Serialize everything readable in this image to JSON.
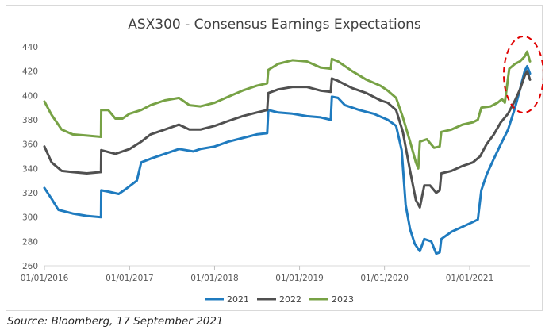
{
  "source_note": "Source: Bloomberg, 17 September 2021",
  "chart_data": {
    "type": "line",
    "title": "ASX300 - Consensus Earnings Expectations",
    "xlabel": "",
    "ylabel": "",
    "ylim": [
      260,
      440
    ],
    "yticks": [
      260,
      280,
      300,
      320,
      340,
      360,
      380,
      400,
      420,
      440
    ],
    "xlim": [
      "2016-01-01",
      "2021-09-17"
    ],
    "xticks": [
      "01/01/2016",
      "01/01/2017",
      "01/01/2018",
      "01/01/2019",
      "01/01/2020",
      "01/01/2021"
    ],
    "grid": false,
    "legend": "bottom",
    "series": [
      {
        "name": "2021",
        "color": "#1f7bbf",
        "points": [
          [
            "2016-01-01",
            324
          ],
          [
            "2016-02-01",
            315
          ],
          [
            "2016-03-01",
            306
          ],
          [
            "2016-05-01",
            303
          ],
          [
            "2016-07-01",
            301
          ],
          [
            "2016-08-31",
            300
          ],
          [
            "2016-09-01",
            322
          ],
          [
            "2016-10-01",
            321
          ],
          [
            "2016-11-15",
            319
          ],
          [
            "2016-12-15",
            323
          ],
          [
            "2017-02-01",
            330
          ],
          [
            "2017-02-20",
            345
          ],
          [
            "2017-04-01",
            348
          ],
          [
            "2017-06-01",
            352
          ],
          [
            "2017-08-01",
            356
          ],
          [
            "2017-09-01",
            355
          ],
          [
            "2017-10-01",
            354
          ],
          [
            "2017-11-01",
            356
          ],
          [
            "2018-01-01",
            358
          ],
          [
            "2018-03-01",
            362
          ],
          [
            "2018-05-01",
            365
          ],
          [
            "2018-07-01",
            368
          ],
          [
            "2018-08-15",
            369
          ],
          [
            "2018-08-20",
            388
          ],
          [
            "2018-10-01",
            386
          ],
          [
            "2018-12-01",
            385
          ],
          [
            "2019-02-01",
            383
          ],
          [
            "2019-04-01",
            382
          ],
          [
            "2019-05-15",
            380
          ],
          [
            "2019-05-20",
            399
          ],
          [
            "2019-06-15",
            398
          ],
          [
            "2019-07-15",
            392
          ],
          [
            "2019-09-15",
            388
          ],
          [
            "2019-11-15",
            385
          ],
          [
            "2020-01-15",
            380
          ],
          [
            "2020-02-20",
            375
          ],
          [
            "2020-03-15",
            355
          ],
          [
            "2020-04-01",
            310
          ],
          [
            "2020-04-20",
            290
          ],
          [
            "2020-05-10",
            278
          ],
          [
            "2020-06-01",
            272
          ],
          [
            "2020-06-20",
            282
          ],
          [
            "2020-07-20",
            280
          ],
          [
            "2020-08-10",
            270
          ],
          [
            "2020-08-25",
            271
          ],
          [
            "2020-09-01",
            282
          ],
          [
            "2020-10-15",
            288
          ],
          [
            "2020-12-01",
            292
          ],
          [
            "2021-01-15",
            296
          ],
          [
            "2021-02-05",
            298
          ],
          [
            "2021-02-20",
            322
          ],
          [
            "2021-03-15",
            335
          ],
          [
            "2021-04-15",
            348
          ],
          [
            "2021-05-15",
            360
          ],
          [
            "2021-06-15",
            372
          ],
          [
            "2021-07-15",
            390
          ],
          [
            "2021-08-05",
            405
          ],
          [
            "2021-08-25",
            420
          ],
          [
            "2021-09-05",
            424
          ],
          [
            "2021-09-17",
            418
          ]
        ]
      },
      {
        "name": "2022",
        "color": "#505050",
        "points": [
          [
            "2016-01-01",
            358
          ],
          [
            "2016-02-01",
            345
          ],
          [
            "2016-03-15",
            338
          ],
          [
            "2016-05-01",
            337
          ],
          [
            "2016-07-01",
            336
          ],
          [
            "2016-08-31",
            337
          ],
          [
            "2016-09-01",
            355
          ],
          [
            "2016-11-01",
            352
          ],
          [
            "2017-01-01",
            356
          ],
          [
            "2017-02-20",
            362
          ],
          [
            "2017-04-01",
            368
          ],
          [
            "2017-06-01",
            372
          ],
          [
            "2017-08-01",
            376
          ],
          [
            "2017-09-15",
            372
          ],
          [
            "2017-11-01",
            372
          ],
          [
            "2018-01-01",
            375
          ],
          [
            "2018-03-01",
            379
          ],
          [
            "2018-05-01",
            383
          ],
          [
            "2018-07-01",
            386
          ],
          [
            "2018-08-15",
            388
          ],
          [
            "2018-08-20",
            402
          ],
          [
            "2018-10-01",
            405
          ],
          [
            "2018-12-01",
            407
          ],
          [
            "2019-02-01",
            407
          ],
          [
            "2019-04-01",
            404
          ],
          [
            "2019-05-15",
            403
          ],
          [
            "2019-05-20",
            414
          ],
          [
            "2019-06-15",
            412
          ],
          [
            "2019-08-15",
            406
          ],
          [
            "2019-10-15",
            402
          ],
          [
            "2019-12-15",
            396
          ],
          [
            "2020-01-15",
            394
          ],
          [
            "2020-02-20",
            388
          ],
          [
            "2020-03-20",
            370
          ],
          [
            "2020-04-20",
            338
          ],
          [
            "2020-05-15",
            314
          ],
          [
            "2020-06-01",
            308
          ],
          [
            "2020-06-20",
            326
          ],
          [
            "2020-07-15",
            326
          ],
          [
            "2020-08-10",
            320
          ],
          [
            "2020-08-25",
            322
          ],
          [
            "2020-09-01",
            336
          ],
          [
            "2020-10-15",
            338
          ],
          [
            "2020-12-01",
            342
          ],
          [
            "2021-01-15",
            345
          ],
          [
            "2021-02-15",
            350
          ],
          [
            "2021-03-15",
            360
          ],
          [
            "2021-04-15",
            368
          ],
          [
            "2021-05-15",
            378
          ],
          [
            "2021-06-15",
            385
          ],
          [
            "2021-07-15",
            396
          ],
          [
            "2021-08-05",
            405
          ],
          [
            "2021-08-25",
            416
          ],
          [
            "2021-09-05",
            420
          ],
          [
            "2021-09-17",
            413
          ]
        ]
      },
      {
        "name": "2023",
        "color": "#77a245",
        "points": [
          [
            "2016-01-01",
            395
          ],
          [
            "2016-02-01",
            384
          ],
          [
            "2016-03-15",
            372
          ],
          [
            "2016-05-01",
            368
          ],
          [
            "2016-07-01",
            367
          ],
          [
            "2016-08-31",
            366
          ],
          [
            "2016-09-01",
            388
          ],
          [
            "2016-10-01",
            388
          ],
          [
            "2016-11-01",
            381
          ],
          [
            "2016-12-01",
            381
          ],
          [
            "2017-01-01",
            385
          ],
          [
            "2017-02-20",
            388
          ],
          [
            "2017-04-01",
            392
          ],
          [
            "2017-06-01",
            396
          ],
          [
            "2017-08-01",
            398
          ],
          [
            "2017-09-15",
            392
          ],
          [
            "2017-11-01",
            391
          ],
          [
            "2018-01-01",
            394
          ],
          [
            "2018-03-01",
            399
          ],
          [
            "2018-05-01",
            404
          ],
          [
            "2018-07-01",
            408
          ],
          [
            "2018-08-15",
            410
          ],
          [
            "2018-08-20",
            421
          ],
          [
            "2018-10-01",
            426
          ],
          [
            "2018-12-01",
            429
          ],
          [
            "2019-02-01",
            428
          ],
          [
            "2019-04-01",
            423
          ],
          [
            "2019-05-15",
            422
          ],
          [
            "2019-05-20",
            430
          ],
          [
            "2019-06-15",
            428
          ],
          [
            "2019-08-15",
            420
          ],
          [
            "2019-10-15",
            413
          ],
          [
            "2019-12-15",
            408
          ],
          [
            "2020-01-15",
            404
          ],
          [
            "2020-02-20",
            398
          ],
          [
            "2020-03-20",
            382
          ],
          [
            "2020-04-20",
            362
          ],
          [
            "2020-05-15",
            345
          ],
          [
            "2020-05-25",
            340
          ],
          [
            "2020-06-01",
            362
          ],
          [
            "2020-07-01",
            364
          ],
          [
            "2020-08-01",
            357
          ],
          [
            "2020-08-25",
            358
          ],
          [
            "2020-09-01",
            370
          ],
          [
            "2020-10-15",
            372
          ],
          [
            "2020-12-01",
            376
          ],
          [
            "2021-01-15",
            378
          ],
          [
            "2021-02-05",
            380
          ],
          [
            "2021-02-20",
            390
          ],
          [
            "2021-04-01",
            391
          ],
          [
            "2021-05-01",
            394
          ],
          [
            "2021-05-20",
            397
          ],
          [
            "2021-06-01",
            394
          ],
          [
            "2021-06-20",
            422
          ],
          [
            "2021-07-15",
            426
          ],
          [
            "2021-08-05",
            428
          ],
          [
            "2021-08-25",
            432
          ],
          [
            "2021-09-05",
            436
          ],
          [
            "2021-09-17",
            428
          ]
        ]
      }
    ],
    "annotation": {
      "shape": "dashed-ellipse",
      "color": "#e00000"
    }
  }
}
